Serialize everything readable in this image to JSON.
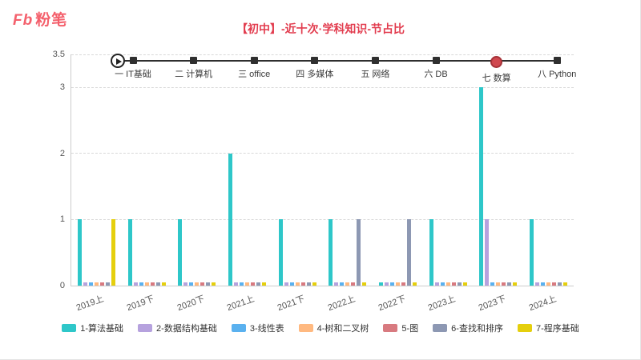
{
  "logo": {
    "fb": "Fb",
    "cn": "粉笔"
  },
  "title": "【初中】-近十次·学科知识-节占比",
  "timeline": {
    "play_icon": "play",
    "items": [
      {
        "label": "一 IT基础",
        "active": false
      },
      {
        "label": "二 计算机",
        "active": false
      },
      {
        "label": "三 office",
        "active": false
      },
      {
        "label": "四 多媒体",
        "active": false
      },
      {
        "label": "五 网络",
        "active": false
      },
      {
        "label": "六 DB",
        "active": false
      },
      {
        "label": "七 数算",
        "active": true
      },
      {
        "label": "八 Python",
        "active": false
      }
    ]
  },
  "chart_data": {
    "type": "bar",
    "title": "【初中】-近十次·学科知识-节占比",
    "categories": [
      "2019上",
      "2019下",
      "2020下",
      "2021上",
      "2021下",
      "2022上",
      "2022下",
      "2023上",
      "2023下",
      "2024上"
    ],
    "series": [
      {
        "name": "1-算法基础",
        "color": "#2ec7c9",
        "values": [
          1,
          1,
          1,
          2,
          1,
          1,
          0.05,
          1,
          3,
          1
        ]
      },
      {
        "name": "2-数据结构基础",
        "color": "#b6a2de",
        "values": [
          0.05,
          0.05,
          0.05,
          0.05,
          0.05,
          0.05,
          0.05,
          0.05,
          1,
          0.05
        ]
      },
      {
        "name": "3-线性表",
        "color": "#5ab1ef",
        "values": [
          0.05,
          0.05,
          0.05,
          0.05,
          0.05,
          0.05,
          0.05,
          0.05,
          0.05,
          0.05
        ]
      },
      {
        "name": "4-树和二叉树",
        "color": "#ffb980",
        "values": [
          0.05,
          0.05,
          0.05,
          0.05,
          0.05,
          0.05,
          0.05,
          0.05,
          0.05,
          0.05
        ]
      },
      {
        "name": "5-图",
        "color": "#d87a80",
        "values": [
          0.05,
          0.05,
          0.05,
          0.05,
          0.05,
          0.05,
          0.05,
          0.05,
          0.05,
          0.05
        ]
      },
      {
        "name": "6-查找和排序",
        "color": "#8d98b3",
        "values": [
          0.05,
          0.05,
          0.05,
          0.05,
          0.05,
          1,
          1,
          0.05,
          0.05,
          0.05
        ]
      },
      {
        "name": "7-程序基础",
        "color": "#e5cf0d",
        "values": [
          1,
          0.05,
          0.05,
          0.05,
          0.05,
          0.05,
          0.05,
          0.05,
          0.05,
          0.05
        ]
      }
    ],
    "ylim": [
      0,
      3.5
    ],
    "yticks": [
      0,
      1,
      2,
      3,
      3.5
    ],
    "grid": "dashed-horizontal",
    "legend_position": "bottom",
    "xlabel_rotate_deg": -20
  }
}
